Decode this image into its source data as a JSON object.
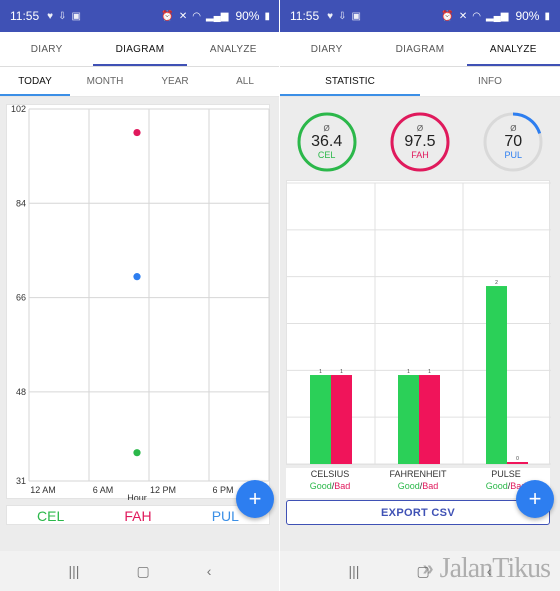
{
  "status": {
    "time": "11:55",
    "battery": "90%",
    "left_icons": [
      "heart-icon",
      "download-icon",
      "image-icon"
    ],
    "right_icons": [
      "alarm-icon",
      "mute-icon",
      "wifi-icon",
      "signal-icon"
    ]
  },
  "left": {
    "tabs": [
      {
        "label": "DIARY",
        "active": false
      },
      {
        "label": "DIAGRAM",
        "active": true
      },
      {
        "label": "ANALYZE",
        "active": false
      }
    ],
    "subtabs": [
      {
        "label": "TODAY",
        "active": true
      },
      {
        "label": "MONTH",
        "active": false
      },
      {
        "label": "YEAR",
        "active": false
      },
      {
        "label": "ALL",
        "active": false
      }
    ],
    "legend": [
      {
        "label": "CEL",
        "color": "#2bb84a"
      },
      {
        "label": "FAH",
        "color": "#e0195c"
      },
      {
        "label": "PUL",
        "color": "#3b8fe6"
      }
    ],
    "fab_label": "+"
  },
  "chart_data": [
    {
      "type": "scatter",
      "xlabel": "Hour",
      "x_ticks": [
        "12 AM",
        "6 AM",
        "12 PM",
        "6 PM"
      ],
      "y_ticks": [
        102,
        84,
        66,
        48,
        31
      ],
      "ylim": [
        31,
        102
      ],
      "grid": true,
      "series": [
        {
          "name": "CEL",
          "color": "#2bb84a",
          "points": [
            {
              "x": 10.8,
              "y": 36.4
            }
          ]
        },
        {
          "name": "FAH",
          "color": "#e0195c",
          "points": [
            {
              "x": 10.8,
              "y": 97.5
            }
          ]
        },
        {
          "name": "PUL",
          "color": "#2d7ef0",
          "points": [
            {
              "x": 10.8,
              "y": 70
            }
          ]
        }
      ]
    },
    {
      "type": "bar",
      "categories": [
        "CELSIUS",
        "FAHRENHEIT",
        "PULSE"
      ],
      "ylim": [
        0,
        3
      ],
      "grid": true,
      "series": [
        {
          "name": "Good",
          "color": "#2bd058",
          "values": [
            1,
            1,
            2
          ]
        },
        {
          "name": "Bad",
          "color": "#f0145a",
          "values": [
            1,
            1,
            0
          ]
        }
      ],
      "value_labels": [
        [
          "1",
          "1"
        ],
        [
          "1",
          "1"
        ],
        [
          "2",
          "0"
        ]
      ]
    }
  ],
  "right": {
    "tabs": [
      {
        "label": "DIARY",
        "active": false
      },
      {
        "label": "DIAGRAM",
        "active": false
      },
      {
        "label": "ANALYZE",
        "active": true
      }
    ],
    "subtabs": [
      {
        "label": "STATISTIC",
        "active": true
      },
      {
        "label": "INFO",
        "active": false
      }
    ],
    "gauges": [
      {
        "symbol": "Ø",
        "value": "36.4",
        "unit": "CEL",
        "color": "#2bb84a",
        "fraction": 1.0
      },
      {
        "symbol": "Ø",
        "value": "97.5",
        "unit": "FAH",
        "color": "#e0195c",
        "fraction": 1.0
      },
      {
        "symbol": "Ø",
        "value": "70",
        "unit": "PUL",
        "color": "#2d7ef0",
        "fraction": 0.2
      }
    ],
    "good_label": "Good",
    "slash": "/",
    "bad_label": "Bad",
    "export_label": "EXPORT CSV",
    "fab_label": "+"
  },
  "watermark": "JalanTikus"
}
